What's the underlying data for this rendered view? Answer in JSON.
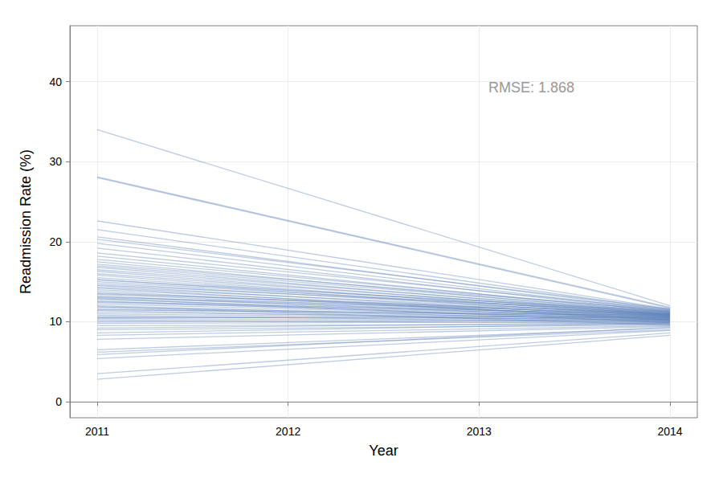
{
  "chart_data": {
    "type": "line",
    "x_label": "Year",
    "y_label": "Readmission Rate (%)",
    "annotation": "RMSE: 1.868",
    "x": [
      2011,
      2014
    ],
    "xlim": [
      2010.857,
      2014.143
    ],
    "xticks": [
      2011,
      2012,
      2013,
      2014
    ],
    "ylim": [
      -2,
      47
    ],
    "yticks": [
      0,
      10,
      20,
      30,
      40
    ],
    "grid": true,
    "color": "#5b80b8",
    "line_style": "solid",
    "series": [
      {
        "values": [
          34.0,
          12.0
        ]
      },
      {
        "values": [
          28.1,
          11.8
        ]
      },
      {
        "values": [
          28.0,
          11.7
        ]
      },
      {
        "values": [
          22.6,
          11.6
        ]
      },
      {
        "values": [
          21.5,
          11.5
        ]
      },
      {
        "values": [
          20.6,
          11.4
        ]
      },
      {
        "values": [
          20.3,
          11.6
        ]
      },
      {
        "values": [
          19.8,
          11.3
        ]
      },
      {
        "values": [
          19.2,
          11.2
        ]
      },
      {
        "values": [
          18.6,
          11.5
        ]
      },
      {
        "values": [
          18.2,
          11.1
        ]
      },
      {
        "values": [
          17.8,
          11.3
        ]
      },
      {
        "values": [
          17.5,
          11.0
        ]
      },
      {
        "values": [
          17.2,
          11.4
        ]
      },
      {
        "values": [
          17.0,
          11.2
        ]
      },
      {
        "values": [
          16.8,
          10.9
        ]
      },
      {
        "values": [
          16.5,
          11.1
        ]
      },
      {
        "values": [
          16.3,
          10.8
        ]
      },
      {
        "values": [
          16.0,
          11.0
        ]
      },
      {
        "values": [
          15.8,
          10.7
        ]
      },
      {
        "values": [
          15.5,
          10.9
        ]
      },
      {
        "values": [
          15.3,
          10.6
        ]
      },
      {
        "values": [
          15.0,
          11.0
        ]
      },
      {
        "values": [
          14.8,
          10.8
        ]
      },
      {
        "values": [
          14.5,
          10.5
        ]
      },
      {
        "values": [
          14.3,
          10.9
        ]
      },
      {
        "values": [
          14.0,
          10.7
        ]
      },
      {
        "values": [
          13.8,
          10.4
        ]
      },
      {
        "values": [
          13.6,
          10.8
        ]
      },
      {
        "values": [
          13.4,
          10.6
        ]
      },
      {
        "values": [
          13.2,
          10.3
        ]
      },
      {
        "values": [
          13.0,
          10.7
        ]
      },
      {
        "values": [
          12.8,
          10.5
        ]
      },
      {
        "values": [
          12.6,
          10.2
        ]
      },
      {
        "values": [
          12.4,
          10.6
        ]
      },
      {
        "values": [
          12.2,
          10.4
        ]
      },
      {
        "values": [
          12.0,
          10.1
        ]
      },
      {
        "values": [
          11.8,
          10.5
        ]
      },
      {
        "values": [
          11.6,
          10.3
        ]
      },
      {
        "values": [
          11.4,
          10.0
        ]
      },
      {
        "values": [
          11.2,
          10.4
        ]
      },
      {
        "values": [
          11.0,
          10.2
        ]
      },
      {
        "values": [
          10.8,
          9.9
        ]
      },
      {
        "values": [
          10.6,
          10.3
        ]
      },
      {
        "values": [
          10.4,
          10.1
        ]
      },
      {
        "values": [
          10.2,
          9.8
        ]
      },
      {
        "values": [
          10.0,
          10.2
        ]
      },
      {
        "values": [
          9.8,
          10.0
        ]
      },
      {
        "values": [
          9.5,
          9.7
        ]
      },
      {
        "values": [
          9.2,
          9.9
        ]
      },
      {
        "values": [
          9.0,
          9.6
        ]
      },
      {
        "values": [
          8.6,
          9.8
        ]
      },
      {
        "values": [
          8.3,
          9.5
        ]
      },
      {
        "values": [
          7.8,
          9.4
        ]
      },
      {
        "values": [
          6.5,
          9.2
        ]
      },
      {
        "values": [
          6.2,
          9.0
        ]
      },
      {
        "values": [
          5.9,
          9.3
        ]
      },
      {
        "values": [
          5.4,
          8.9
        ]
      },
      {
        "values": [
          3.5,
          8.6
        ]
      },
      {
        "values": [
          2.8,
          8.3
        ]
      },
      {
        "values": [
          15.2,
          11.3
        ]
      },
      {
        "values": [
          14.2,
          10.2
        ]
      },
      {
        "values": [
          13.5,
          11.1
        ]
      },
      {
        "values": [
          12.5,
          10.9
        ]
      },
      {
        "values": [
          11.5,
          10.8
        ]
      },
      {
        "values": [
          10.5,
          10.6
        ]
      },
      {
        "values": [
          12.9,
          9.9
        ]
      },
      {
        "values": [
          11.9,
          9.6
        ]
      },
      {
        "values": [
          14.6,
          11.2
        ]
      },
      {
        "values": [
          13.1,
          11.0
        ]
      }
    ]
  }
}
